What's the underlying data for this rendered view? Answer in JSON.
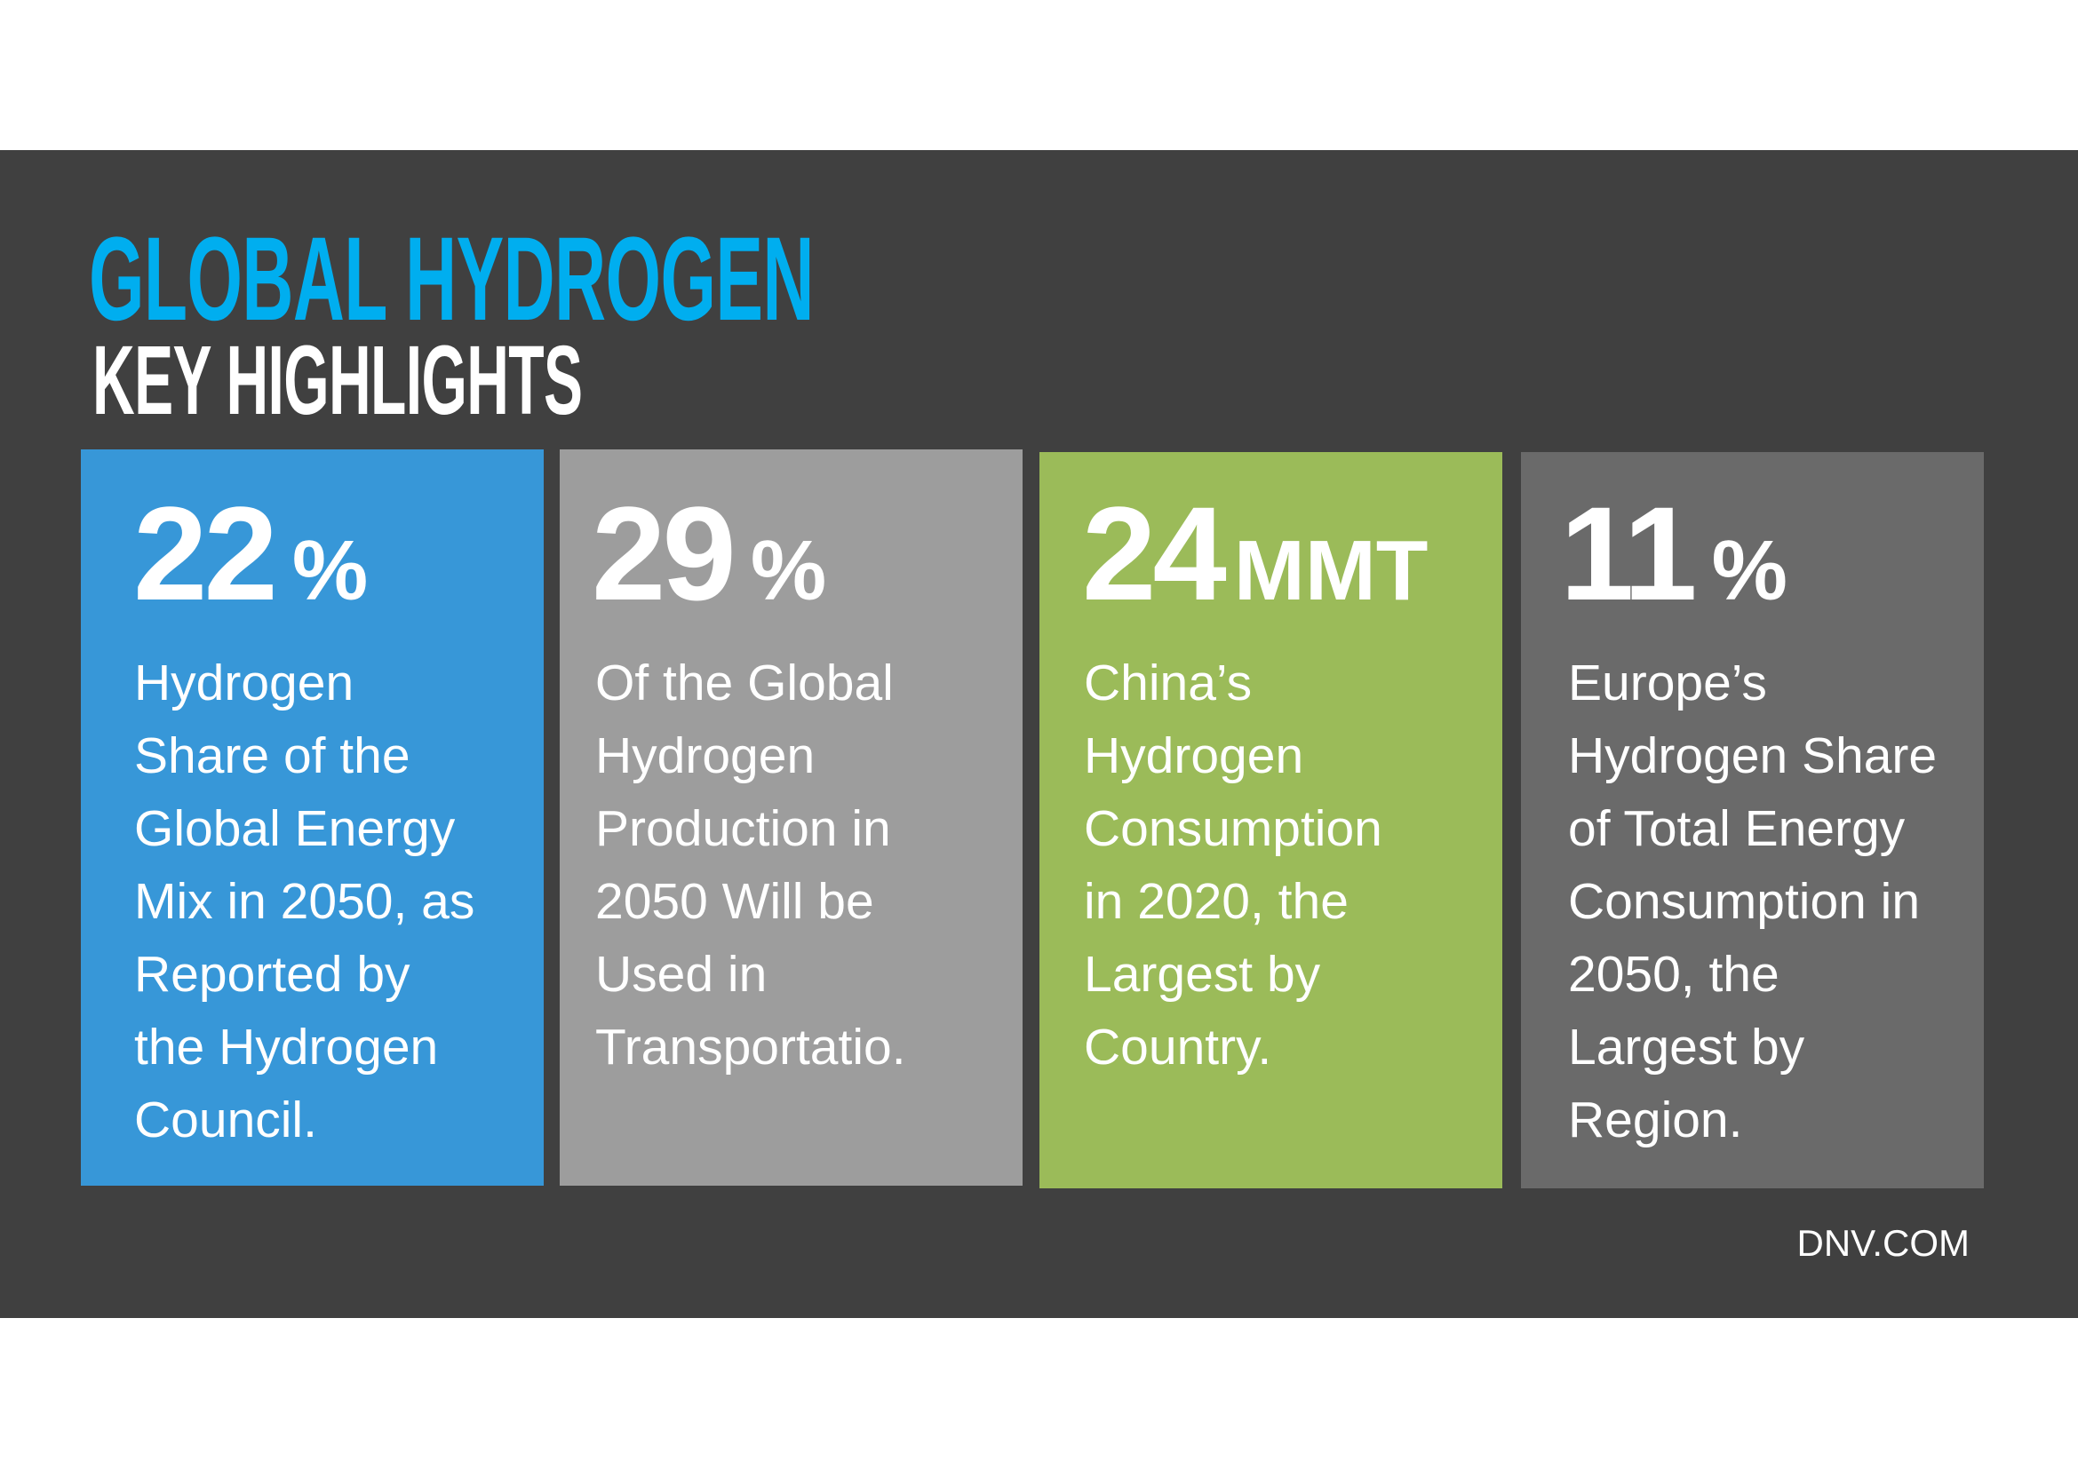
{
  "header": {
    "title": "GLOBAL HYDROGEN",
    "subtitle": "KEY HIGHLIGHTS"
  },
  "colors": {
    "background": "#404040",
    "title": "#00aeef",
    "box1": "#3797d8",
    "box2": "#9d9d9d",
    "box3": "#9bbb59",
    "box4": "#6a6a6a"
  },
  "cards": [
    {
      "value": "22",
      "unit": "%",
      "description": "Hydrogen\nShare of the\nGlobal Energy\nMix in 2050, as\nReported by\nthe Hydrogen\nCouncil."
    },
    {
      "value": "29",
      "unit": "%",
      "description": "Of the Global\nHydrogen\nProduction in\n2050 Will be\nUsed in\nTransportatio."
    },
    {
      "value": "24",
      "unit": "MMT",
      "description": "China’s\nHydrogen\nConsumption\nin 2020, the\nLargest by\nCountry."
    },
    {
      "value": "11",
      "unit": "%",
      "description": "Europe’s\nHydrogen Share\nof Total Energy\nConsumption in\n2050, the\nLargest by\nRegion."
    }
  ],
  "footer": {
    "source": "DNV.COM"
  }
}
